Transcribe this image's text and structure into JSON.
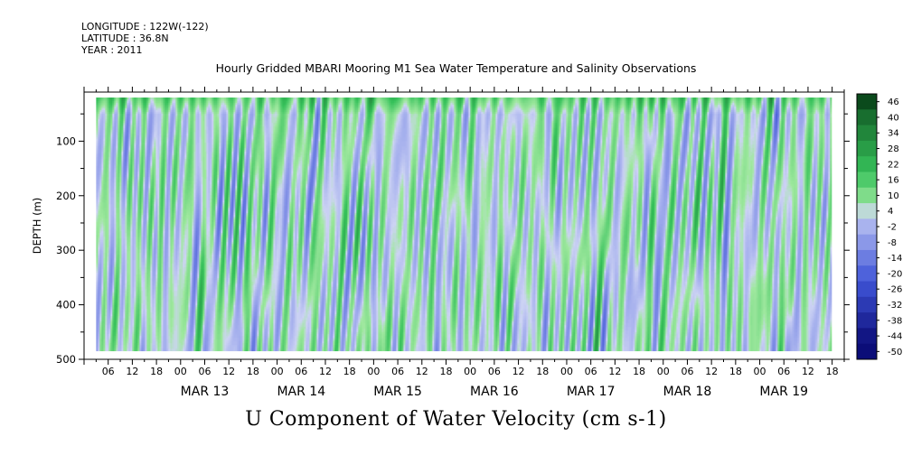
{
  "header": {
    "longitude": "LONGITUDE : 122W(-122)",
    "latitude": "LATITUDE : 36.8N",
    "year": "YEAR : 2011"
  },
  "plot_title": "Hourly Gridded MBARI Mooring M1 Sea Water Temperature and Salinity Observations",
  "variable_title": "U Component of Water Velocity (cm s-1)",
  "chart_data": {
    "type": "heatmap",
    "title": "Hourly Gridded MBARI Mooring M1 Sea Water Temperature and Salinity Observations",
    "variable": "U Component of Water Velocity (cm s-1)",
    "ylabel": "DEPTH (m)",
    "ylim": [
      500,
      10
    ],
    "y_reversed": true,
    "y_ticks": [
      100,
      200,
      300,
      400,
      500
    ],
    "data_depth_range": [
      20,
      485
    ],
    "x_start": "2011-03-12T00:00",
    "x_end": "2011-03-19T21:00",
    "data_time_range": [
      "2011-03-12T03:00",
      "2011-03-19T18:00"
    ],
    "x_tick_hours": [
      "00",
      "06",
      "12",
      "18"
    ],
    "x_day_labels": [
      "MAR 13",
      "MAR 14",
      "MAR 15",
      "MAR 16",
      "MAR 17",
      "MAR 18",
      "MAR 19"
    ],
    "colorbar": {
      "levels": [
        -50,
        -44,
        -38,
        -32,
        -26,
        -20,
        -14,
        -8,
        -2,
        4,
        10,
        16,
        22,
        28,
        34,
        40,
        46
      ],
      "labels": [
        "46",
        "40",
        "34",
        "28",
        "22",
        "16",
        "10",
        "4",
        "-2",
        "-8",
        "-14",
        "-20",
        "-26",
        "-32",
        "-38",
        "-44",
        "-50"
      ],
      "colors": {
        "strong_negative": "#0b0d78",
        "moderate_negative": "#3f55d8",
        "weak_negative": "#a9b3ee",
        "weak_positive": "#9fe89f",
        "moderate_positive": "#36c15a",
        "strong_positive": "#0b4a1c"
      }
    },
    "field_character": "Mostly weak velocities between -8 and 10 cm/s; vertical banding of positive (green) and negative (lavender) flow; stronger positive values near the surface."
  }
}
